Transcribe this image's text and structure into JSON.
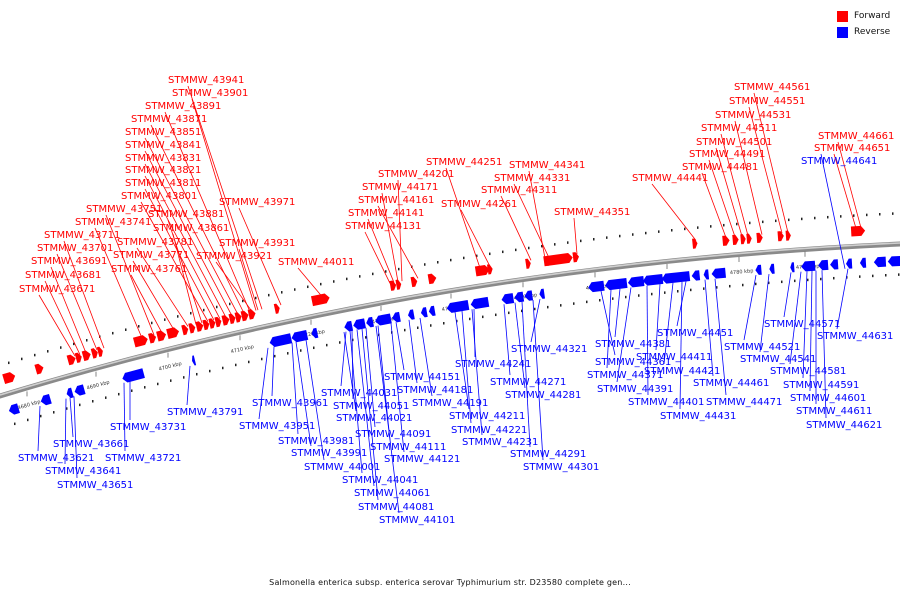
{
  "legend": {
    "forward_label": "Forward",
    "forward_color": "#ff0000",
    "reverse_label": "Reverse",
    "reverse_color": "#0000ff"
  },
  "caption": "Salmonella enterica subsp. enterica serovar Typhimurium str. D23580 complete gen...",
  "scale": {
    "unit": "kbp",
    "ticks": [
      "4680 kbp",
      "4690 kbp",
      "4700 kbp",
      "4710 kbp",
      "4720 kbp",
      "4730 kbp",
      "4740 kbp",
      "4750 kbp",
      "4760 kbp",
      "4770 kbp",
      "4780 kbp",
      "4790 kbp"
    ]
  },
  "genes": {
    "forward": [
      "STMMW_43671",
      "STMMW_43681",
      "STMMW_43691",
      "STMMW_43701",
      "STMMW_43711",
      "STMMW_43741",
      "STMMW_43751",
      "STMMW_43761",
      "STMMW_43771",
      "STMMW_43781",
      "STMMW_43801",
      "STMMW_43811",
      "STMMW_43821",
      "STMMW_43831",
      "STMMW_43841",
      "STMMW_43851",
      "STMMW_43861",
      "STMMW_43871",
      "STMMW_43881",
      "STMMW_43891",
      "STMMW_43901",
      "STMMW_43921",
      "STMMW_43931",
      "STMMW_43941",
      "STMMW_43971",
      "STMMW_44011",
      "STMMW_44131",
      "STMMW_44141",
      "STMMW_44161",
      "STMMW_44171",
      "STMMW_44201",
      "STMMW_44251",
      "STMMW_44261",
      "STMMW_44311",
      "STMMW_44331",
      "STMMW_44341",
      "STMMW_44351",
      "STMMW_44441",
      "STMMW_44481",
      "STMMW_44491",
      "STMMW_44501",
      "STMMW_44511",
      "STMMW_44531",
      "STMMW_44551",
      "STMMW_44561",
      "STMMW_44651",
      "STMMW_44661"
    ],
    "reverse": [
      "STMMW_43621",
      "STMMW_43641",
      "STMMW_43651",
      "STMMW_43661",
      "STMMW_43721",
      "STMMW_43731",
      "STMMW_43791",
      "STMMW_43951",
      "STMMW_43961",
      "STMMW_43981",
      "STMMW_43991",
      "STMMW_44001",
      "STMMW_44021",
      "STMMW_44031",
      "STMMW_44041",
      "STMMW_44051",
      "STMMW_44061",
      "STMMW_44081",
      "STMMW_44091",
      "STMMW_44101",
      "STMMW_44111",
      "STMMW_44121",
      "STMMW_44151",
      "STMMW_44181",
      "STMMW_44191",
      "STMMW_44211",
      "STMMW_44221",
      "STMMW_44231",
      "STMMW_44241",
      "STMMW_44271",
      "STMMW_44281",
      "STMMW_44291",
      "STMMW_44301",
      "STMMW_44321",
      "STMMW_44361",
      "STMMW_44371",
      "STMMW_44381",
      "STMMW_44391",
      "STMMW_44401",
      "STMMW_44411",
      "STMMW_44421",
      "STMMW_44431",
      "STMMW_44451",
      "STMMW_44461",
      "STMMW_44471",
      "STMMW_44521",
      "STMMW_44541",
      "STMMW_44571",
      "STMMW_44581",
      "STMMW_44591",
      "STMMW_44601",
      "STMMW_44611",
      "STMMW_44621",
      "STMMW_44631",
      "STMMW_44641"
    ]
  }
}
